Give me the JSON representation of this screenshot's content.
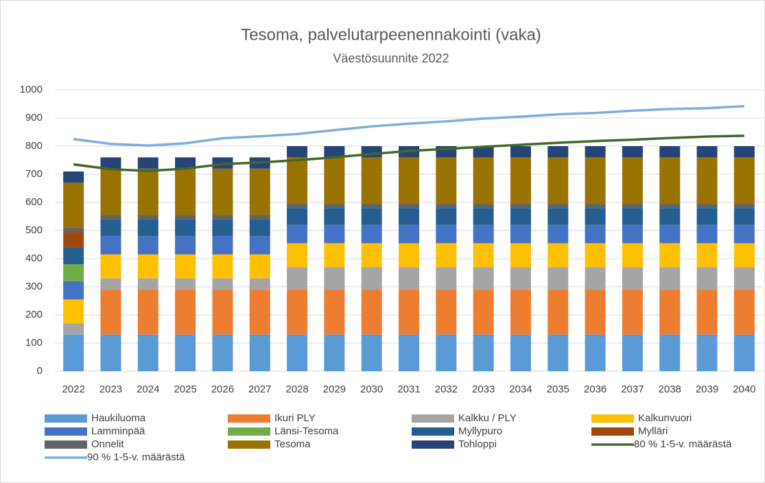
{
  "chart_data": {
    "type": "bar",
    "stacked": true,
    "title": "Tesoma, palvelutarpeenennakointi (vaka)",
    "subtitle": "Väestösuunnite 2022",
    "categories": [
      "2022",
      "2023",
      "2024",
      "2025",
      "2026",
      "2027",
      "2028",
      "2029",
      "2030",
      "2031",
      "2032",
      "2033",
      "2034",
      "2035",
      "2036",
      "2037",
      "2038",
      "2039",
      "2040"
    ],
    "ylim": [
      0,
      1000
    ],
    "yticks": [
      0,
      100,
      200,
      300,
      400,
      500,
      600,
      700,
      800,
      900,
      1000
    ],
    "grid": true,
    "legend": "bottom",
    "series": [
      {
        "name": "Haukiluoma",
        "color": "#5b9bd5",
        "values": [
          130,
          130,
          130,
          130,
          130,
          130,
          130,
          130,
          130,
          130,
          130,
          130,
          130,
          130,
          130,
          130,
          130,
          130,
          130
        ]
      },
      {
        "name": "Ikuri PLY",
        "color": "#ed7d31",
        "values": [
          0,
          160,
          160,
          160,
          160,
          160,
          160,
          160,
          160,
          160,
          160,
          160,
          160,
          160,
          160,
          160,
          160,
          160,
          160
        ]
      },
      {
        "name": "Kalkku / PLY",
        "color": "#a5a5a5",
        "values": [
          40,
          40,
          40,
          40,
          40,
          40,
          80,
          80,
          80,
          80,
          80,
          80,
          80,
          80,
          80,
          80,
          80,
          80,
          80
        ]
      },
      {
        "name": "Kalkunvuori",
        "color": "#ffc000",
        "values": [
          85,
          85,
          85,
          85,
          85,
          85,
          85,
          85,
          85,
          85,
          85,
          85,
          85,
          85,
          85,
          85,
          85,
          85,
          85
        ]
      },
      {
        "name": "Lamminpää",
        "color": "#4472c4",
        "values": [
          65,
          65,
          65,
          65,
          65,
          65,
          65,
          65,
          65,
          65,
          65,
          65,
          65,
          65,
          65,
          65,
          65,
          65,
          65
        ]
      },
      {
        "name": "Länsi-Tesoma",
        "color": "#70ad47",
        "values": [
          60,
          0,
          0,
          0,
          0,
          0,
          0,
          0,
          0,
          0,
          0,
          0,
          0,
          0,
          0,
          0,
          0,
          0,
          0
        ]
      },
      {
        "name": "Myllypuro",
        "color": "#255e91",
        "values": [
          60,
          60,
          60,
          60,
          60,
          60,
          60,
          60,
          60,
          60,
          60,
          60,
          60,
          60,
          60,
          60,
          60,
          60,
          60
        ]
      },
      {
        "name": "Mylläri",
        "color": "#9e480e",
        "values": [
          55,
          0,
          0,
          0,
          0,
          0,
          0,
          0,
          0,
          0,
          0,
          0,
          0,
          0,
          0,
          0,
          0,
          0,
          0
        ]
      },
      {
        "name": "Onnelit",
        "color": "#636363",
        "values": [
          15,
          15,
          15,
          15,
          15,
          15,
          15,
          15,
          15,
          15,
          15,
          15,
          15,
          15,
          15,
          15,
          15,
          15,
          15
        ]
      },
      {
        "name": "Tesoma",
        "color": "#997300",
        "values": [
          160,
          165,
          165,
          165,
          165,
          165,
          165,
          165,
          165,
          165,
          165,
          165,
          165,
          165,
          165,
          165,
          165,
          165,
          165
        ]
      },
      {
        "name": "Tohloppi",
        "color": "#264478",
        "values": [
          40,
          40,
          40,
          40,
          40,
          40,
          40,
          40,
          40,
          40,
          40,
          40,
          40,
          40,
          40,
          40,
          40,
          40,
          40
        ]
      },
      {
        "name": "80 % 1-5-v. määrästä",
        "color": "#43682b",
        "type": "line",
        "values": [
          735,
          718,
          712,
          720,
          736,
          742,
          750,
          760,
          772,
          783,
          790,
          798,
          805,
          812,
          818,
          823,
          829,
          834,
          837
        ]
      },
      {
        "name": "90 % 1-5-v. määrästä",
        "color": "#7cafdd",
        "type": "line",
        "values": [
          825,
          808,
          802,
          810,
          828,
          835,
          843,
          857,
          870,
          880,
          888,
          898,
          905,
          913,
          918,
          926,
          932,
          935,
          942
        ]
      }
    ]
  }
}
